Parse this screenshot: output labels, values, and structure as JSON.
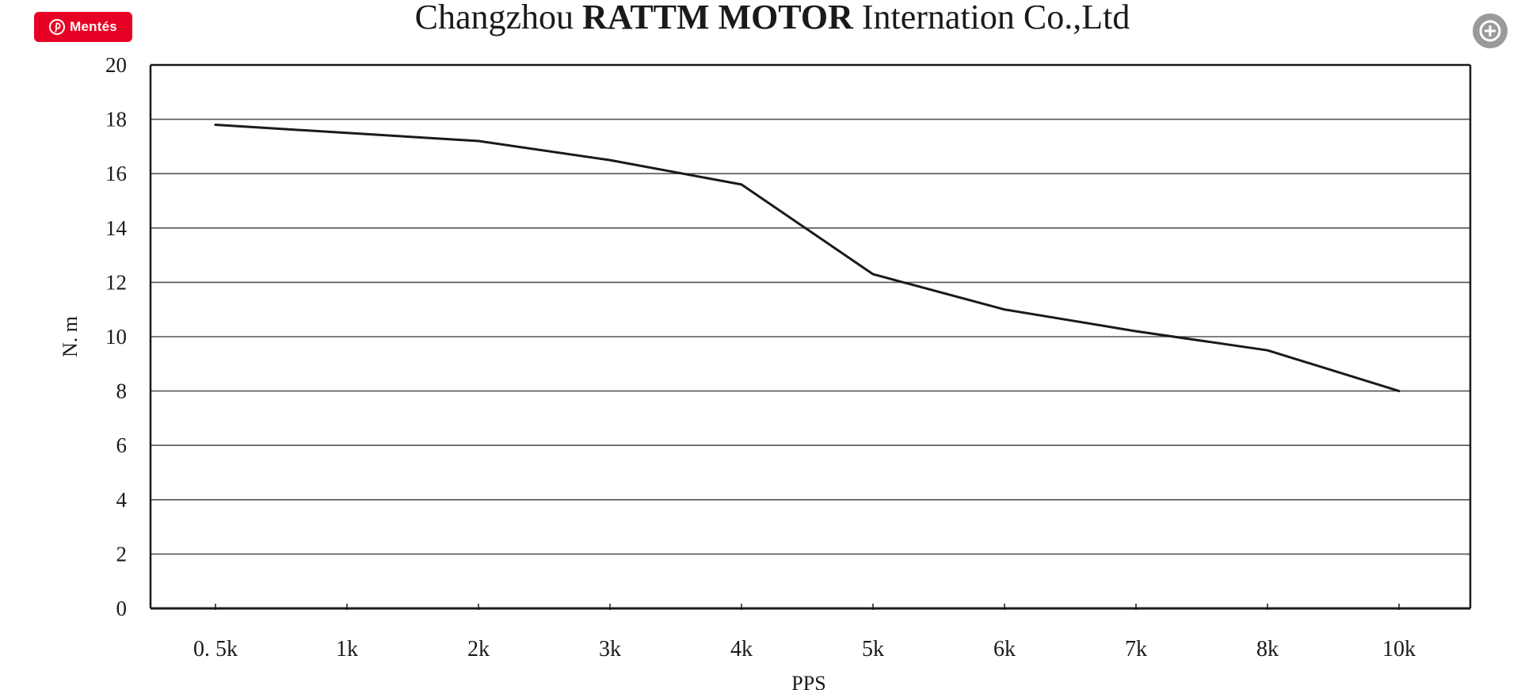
{
  "pin_button": {
    "label": "Mentés"
  },
  "chart_data": {
    "type": "line",
    "title": {
      "prefix": "Changzhou ",
      "bold": "RATTM MOTOR",
      "suffix": " Internation Co.,Ltd"
    },
    "xlabel": "PPS",
    "ylabel": "N. m",
    "categories": [
      "0. 5k",
      "1k",
      "2k",
      "3k",
      "4k",
      "5k",
      "6k",
      "7k",
      "8k",
      "10k"
    ],
    "yticks": [
      "0",
      "2",
      "4",
      "6",
      "8",
      "10",
      "12",
      "14",
      "16",
      "18",
      "20"
    ],
    "ylim": [
      0,
      20
    ],
    "grid": true,
    "series": [
      {
        "values": [
          17.8,
          17.5,
          17.2,
          16.5,
          15.6,
          12.3,
          11.0,
          10.2,
          9.5,
          8.0
        ]
      }
    ],
    "line_color": "#1a1a1a",
    "grid_color": "#555555"
  },
  "zoom_button": {
    "icon": "plus-circle-icon",
    "color": "#9a9a9a"
  }
}
